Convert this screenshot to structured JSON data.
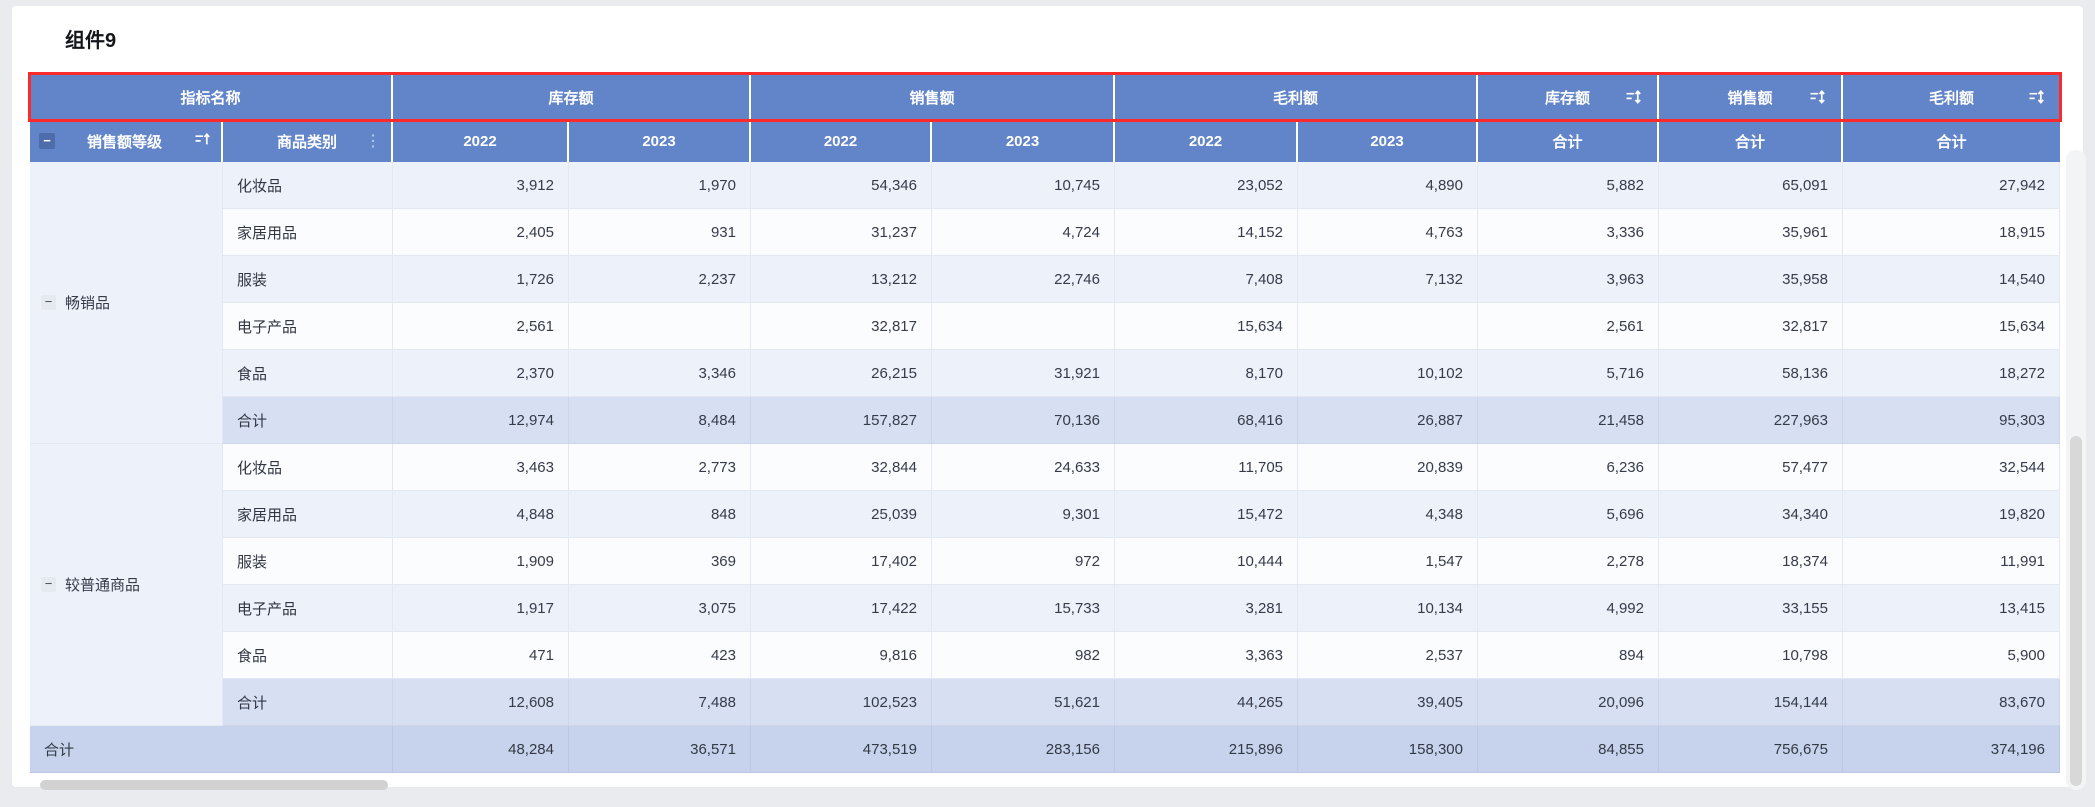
{
  "page": {
    "title": "组件9"
  },
  "colors": {
    "header_bg": "#6284c8",
    "selection_red": "#fb2b2b",
    "row_alt": "#edf1fa",
    "row_plain": "#fbfcfe",
    "subtotal_bg": "#d7dff2",
    "grand_bg": "#c7d3ec",
    "header_text": "#ffffff",
    "body_text": "#363b49"
  },
  "table": {
    "group_headers": [
      {
        "label": "指标名称",
        "span": 2,
        "icon": null
      },
      {
        "label": "库存额",
        "span": 2,
        "icon": null
      },
      {
        "label": "销售额",
        "span": 2,
        "icon": null
      },
      {
        "label": "毛利额",
        "span": 2,
        "icon": null
      },
      {
        "label": "库存额",
        "span": 1,
        "icon": "sort-updown-icon"
      },
      {
        "label": "销售额",
        "span": 1,
        "icon": "sort-updown-icon"
      },
      {
        "label": "毛利额",
        "span": 1,
        "icon": "sort-updown-icon"
      }
    ],
    "sub_headers": [
      {
        "label": "销售额等级",
        "collapse": true,
        "icon": "sort-asc-icon"
      },
      {
        "label": "商品类别",
        "collapse": false,
        "icon": "more-dots-icon"
      },
      {
        "label": "2022"
      },
      {
        "label": "2023"
      },
      {
        "label": "2022"
      },
      {
        "label": "2023"
      },
      {
        "label": "2022"
      },
      {
        "label": "2023"
      },
      {
        "label": "合计"
      },
      {
        "label": "合计"
      },
      {
        "label": "合计"
      }
    ],
    "groups": [
      {
        "label": "畅销品",
        "rows": [
          {
            "category": "化妆品",
            "stripe": "odd",
            "values": [
              "3,912",
              "1,970",
              "54,346",
              "10,745",
              "23,052",
              "4,890",
              "5,882",
              "65,091",
              "27,942"
            ]
          },
          {
            "category": "家居用品",
            "stripe": "even",
            "values": [
              "2,405",
              "931",
              "31,237",
              "4,724",
              "14,152",
              "4,763",
              "3,336",
              "35,961",
              "18,915"
            ]
          },
          {
            "category": "服装",
            "stripe": "odd",
            "values": [
              "1,726",
              "2,237",
              "13,212",
              "22,746",
              "7,408",
              "7,132",
              "3,963",
              "35,958",
              "14,540"
            ]
          },
          {
            "category": "电子产品",
            "stripe": "even",
            "values": [
              "2,561",
              "",
              "32,817",
              "",
              "15,634",
              "",
              "2,561",
              "32,817",
              "15,634"
            ]
          },
          {
            "category": "食品",
            "stripe": "odd",
            "values": [
              "2,370",
              "3,346",
              "26,215",
              "31,921",
              "8,170",
              "10,102",
              "5,716",
              "58,136",
              "18,272"
            ]
          },
          {
            "category": "合计",
            "stripe": "sub",
            "values": [
              "12,974",
              "8,484",
              "157,827",
              "70,136",
              "68,416",
              "26,887",
              "21,458",
              "227,963",
              "95,303"
            ]
          }
        ]
      },
      {
        "label": "较普通商品",
        "rows": [
          {
            "category": "化妆品",
            "stripe": "even",
            "values": [
              "3,463",
              "2,773",
              "32,844",
              "24,633",
              "11,705",
              "20,839",
              "6,236",
              "57,477",
              "32,544"
            ]
          },
          {
            "category": "家居用品",
            "stripe": "odd",
            "values": [
              "4,848",
              "848",
              "25,039",
              "9,301",
              "15,472",
              "4,348",
              "5,696",
              "34,340",
              "19,820"
            ]
          },
          {
            "category": "服装",
            "stripe": "even",
            "values": [
              "1,909",
              "369",
              "17,402",
              "972",
              "10,444",
              "1,547",
              "2,278",
              "18,374",
              "11,991"
            ]
          },
          {
            "category": "电子产品",
            "stripe": "odd",
            "values": [
              "1,917",
              "3,075",
              "17,422",
              "15,733",
              "3,281",
              "10,134",
              "4,992",
              "33,155",
              "13,415"
            ]
          },
          {
            "category": "食品",
            "stripe": "even",
            "values": [
              "471",
              "423",
              "9,816",
              "982",
              "3,363",
              "2,537",
              "894",
              "10,798",
              "5,900"
            ]
          },
          {
            "category": "合计",
            "stripe": "sub",
            "values": [
              "12,608",
              "7,488",
              "102,523",
              "51,621",
              "44,265",
              "39,405",
              "20,096",
              "154,144",
              "83,670"
            ]
          }
        ]
      }
    ],
    "grand_total": {
      "label": "合计",
      "values": [
        "48,284",
        "36,571",
        "473,519",
        "283,156",
        "215,896",
        "158,300",
        "84,855",
        "756,675",
        "374,196"
      ]
    }
  }
}
